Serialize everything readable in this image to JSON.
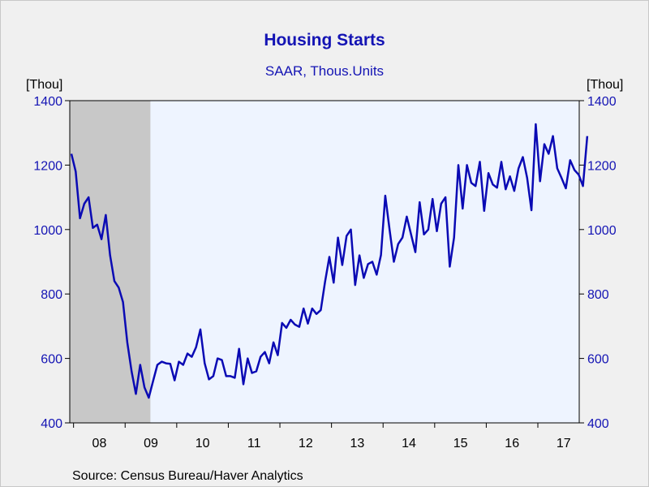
{
  "title": "Housing Starts",
  "subtitle": "SAAR, Thous.Units",
  "left_unit": "[Thou]",
  "right_unit": "[Thou]",
  "source": "Source:  Census Bureau/Haver Analytics",
  "colors": {
    "background": "#f0f0f0",
    "plot_background": "#eef4ff",
    "line": "#0a0ab4",
    "recession": "#c8c8c8",
    "text_blue": "#1414b4"
  },
  "chart_data": {
    "type": "line",
    "title": "Housing Starts",
    "subtitle": "SAAR, Thous.Units",
    "ylabel_left": "[Thou]",
    "ylabel_right": "[Thou]",
    "ylim": [
      400,
      1400
    ],
    "y_ticks": [
      400,
      600,
      800,
      1000,
      1200,
      1400
    ],
    "x_tick_labels": [
      "08",
      "09",
      "10",
      "11",
      "12",
      "13",
      "14",
      "15",
      "16",
      "17"
    ],
    "x_start": "2007-12",
    "x_end": "2017-10",
    "grid": false,
    "recession_shading": {
      "start": "2007-12",
      "end": "2009-06"
    },
    "series": [
      {
        "values": [
          1235,
          1180,
          1035,
          1080,
          1100,
          1005,
          1015,
          970,
          1045,
          920,
          840,
          820,
          775,
          650,
          560,
          490,
          580,
          510,
          478,
          530,
          580,
          590,
          585,
          583,
          532,
          590,
          580,
          615,
          605,
          635,
          690,
          585,
          535,
          545,
          600,
          595,
          545,
          545,
          540,
          630,
          520,
          600,
          555,
          560,
          605,
          620,
          585,
          650,
          610,
          710,
          695,
          720,
          705,
          698,
          755,
          708,
          755,
          738,
          750,
          838,
          915,
          835,
          975,
          890,
          980,
          1000,
          828,
          920,
          850,
          893,
          900,
          860,
          921,
          1105,
          1000,
          900,
          955,
          975,
          1040,
          985,
          930,
          1085,
          985,
          1000,
          1095,
          995,
          1080,
          1100,
          885,
          975,
          1200,
          1065,
          1200,
          1145,
          1135,
          1210,
          1058,
          1175,
          1140,
          1130,
          1210,
          1125,
          1165,
          1120,
          1190,
          1225,
          1160,
          1060,
          1327,
          1150,
          1265,
          1235,
          1290,
          1190,
          1160,
          1128,
          1215,
          1185,
          1170,
          1135,
          1290
        ]
      }
    ]
  }
}
